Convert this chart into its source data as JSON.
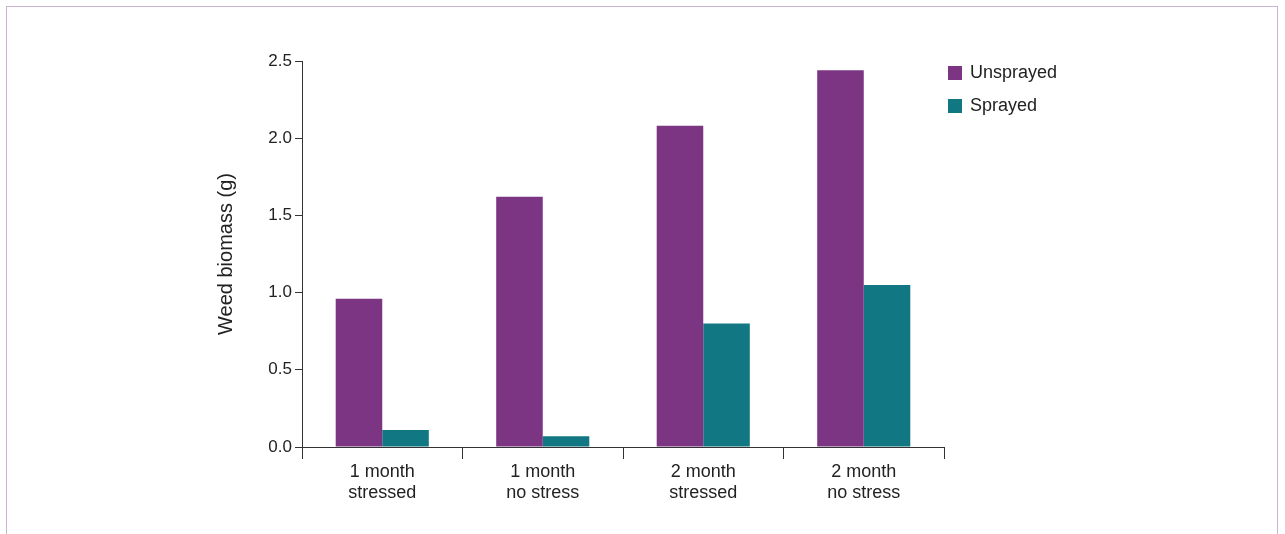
{
  "chart_data": {
    "type": "bar",
    "ylabel": "Weed biomass (g)",
    "categories": [
      "1 month\nstressed",
      "1 month\nno stress",
      "2 month\nstressed",
      "2 month\nno stress"
    ],
    "series": [
      {
        "name": "Unsprayed",
        "color": "#7b3583",
        "values": [
          0.96,
          1.62,
          2.08,
          2.44
        ]
      },
      {
        "name": "Sprayed",
        "color": "#117783",
        "values": [
          0.11,
          0.07,
          0.8,
          1.05
        ]
      }
    ],
    "ylim": [
      0,
      2.5
    ],
    "yticks": [
      {
        "value": 0,
        "label": "0.0"
      },
      0.5,
      {
        "value": 1,
        "label": "1.0"
      },
      1.5,
      {
        "value": 2,
        "label": "2.0"
      },
      2.5
    ],
    "grid": false,
    "legend": "top right"
  }
}
